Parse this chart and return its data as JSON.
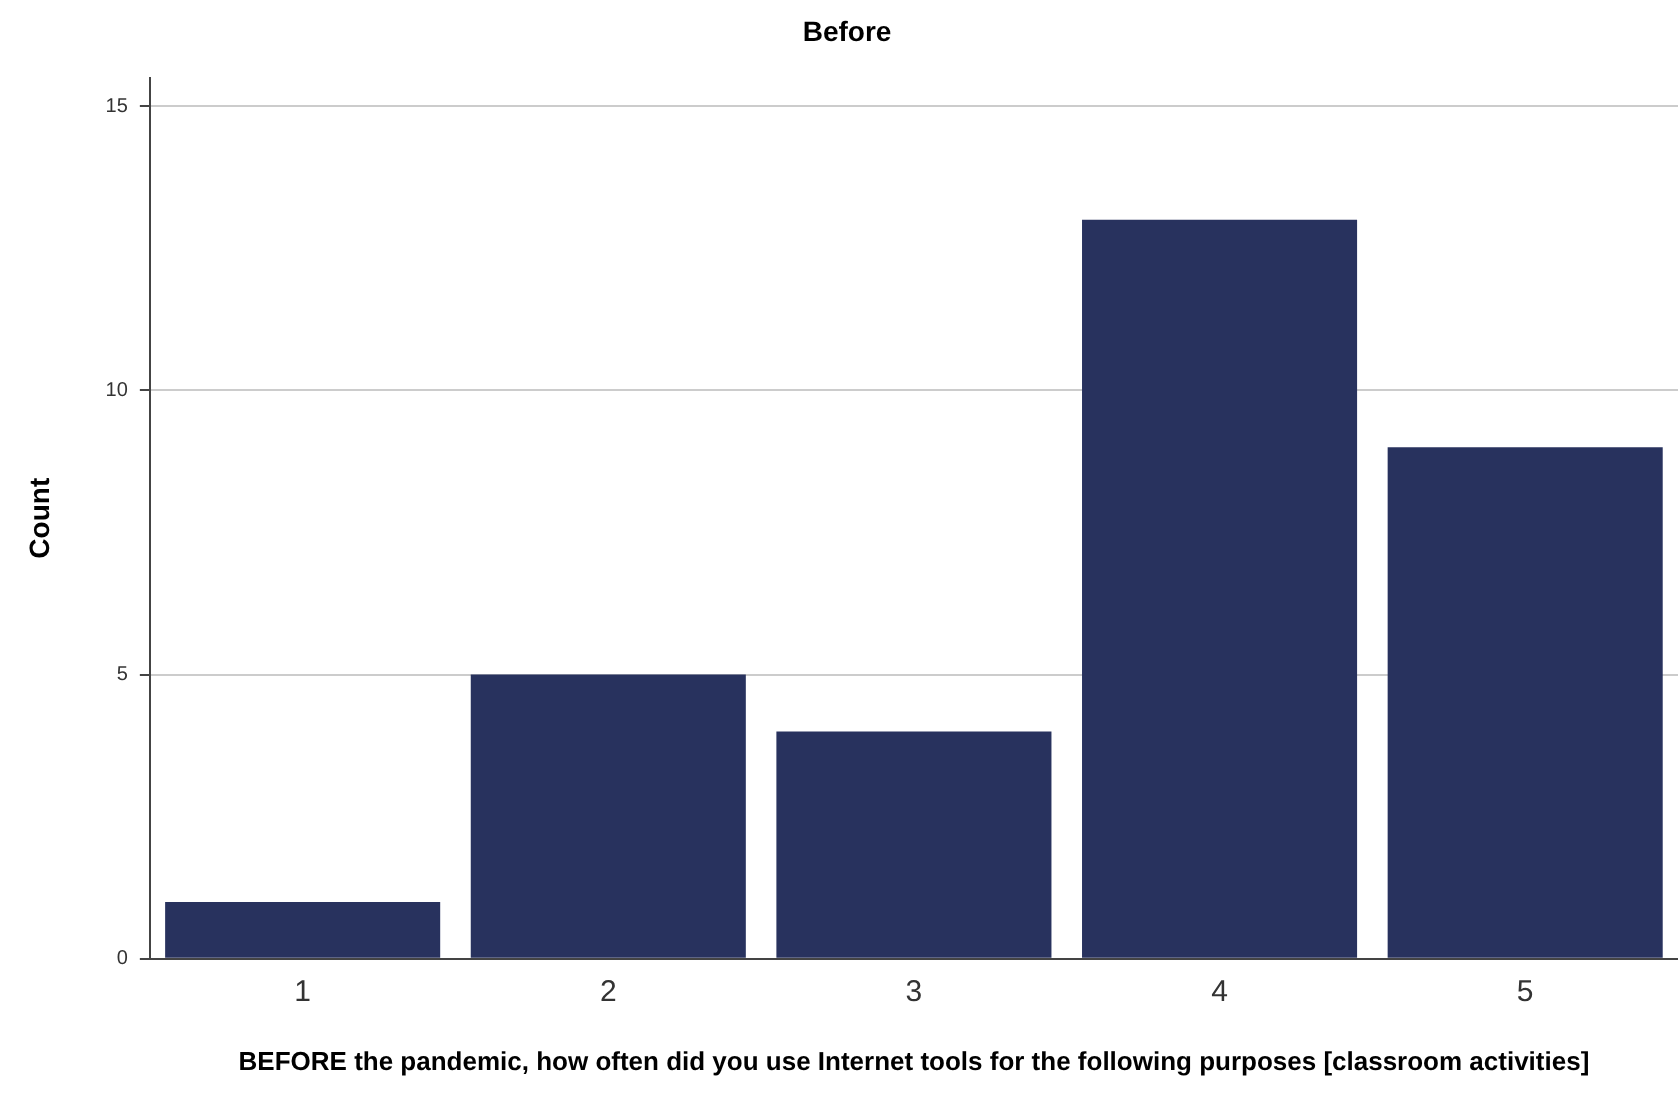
{
  "chart_data": {
    "type": "bar",
    "title": "Before",
    "xlabel": "BEFORE the pandemic, how often did you use Internet tools for the following purposes [classroom activities]",
    "ylabel": "Count",
    "categories": [
      "1",
      "2",
      "3",
      "4",
      "5"
    ],
    "values": [
      1,
      5,
      4,
      13,
      9
    ],
    "color": "#28325e",
    "ylim": [
      0,
      15.5
    ],
    "yticks": [
      0,
      5,
      10,
      15
    ],
    "grid": "y"
  }
}
